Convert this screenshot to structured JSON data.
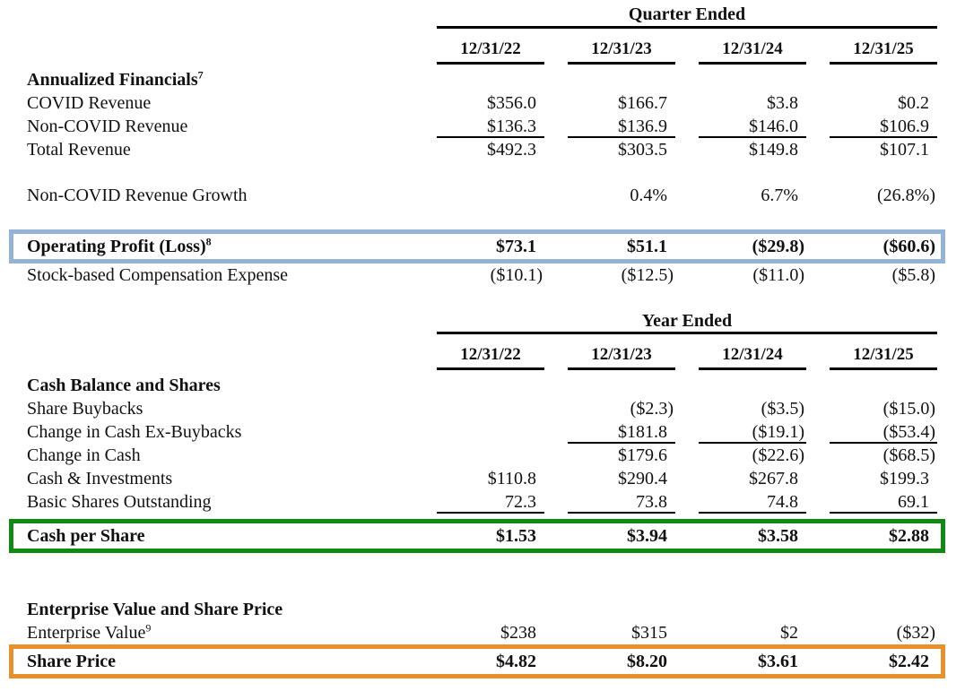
{
  "page": {
    "background": "#ffffff",
    "text_color": "#111111"
  },
  "box_colors": {
    "blue": "#95B3D7",
    "green": "#108A12",
    "orange": "#E8902C"
  },
  "tables": [
    {
      "id": "quarter-ended",
      "header": "Quarter Ended",
      "columns": [
        "12/31/22",
        "12/31/23",
        "12/31/24",
        "12/31/25"
      ],
      "rows": [
        {
          "label": "Annualized Financials",
          "sup": "7",
          "bold": true,
          "values": [
            "",
            "",
            "",
            ""
          ]
        },
        {
          "label": "COVID Revenue",
          "values": [
            "$356.0",
            "$166.7",
            "$3.8",
            "$0.2"
          ]
        },
        {
          "label": "Non-COVID Revenue",
          "values": [
            "$136.3",
            "$136.9",
            "$146.0",
            "$106.9"
          ],
          "underline": [
            1,
            2,
            3,
            4
          ]
        },
        {
          "label": "Total Revenue",
          "values": [
            "$492.3",
            "$303.5",
            "$149.8",
            "$107.1"
          ]
        },
        {
          "spacer": true
        },
        {
          "label": "Non-COVID Revenue Growth",
          "values": [
            "",
            "0.4%",
            "6.7%",
            "(26.8%)"
          ]
        },
        {
          "spacer": true
        },
        {
          "label": "Operating Profit (Loss)",
          "sup": "8",
          "bold": true,
          "box": "blue",
          "values": [
            "$73.1",
            "$51.1",
            "($29.8)",
            "($60.6)"
          ]
        },
        {
          "label": "Stock-based Compensation Expense",
          "values": [
            "($10.1)",
            "($12.5)",
            "($11.0)",
            "($5.8)"
          ]
        }
      ]
    },
    {
      "id": "year-ended",
      "header": "Year Ended",
      "columns": [
        "12/31/22",
        "12/31/23",
        "12/31/24",
        "12/31/25"
      ],
      "rows": [
        {
          "label": "Cash Balance and Shares",
          "bold": true,
          "values": [
            "",
            "",
            "",
            ""
          ]
        },
        {
          "label": "Share Buybacks",
          "values": [
            "",
            "($2.3)",
            "($3.5)",
            "($15.0)"
          ]
        },
        {
          "label": "Change in Cash Ex-Buybacks",
          "values": [
            "",
            "$181.8",
            "($19.1)",
            "($53.4)"
          ],
          "underline": [
            2,
            3,
            4
          ]
        },
        {
          "label": "Change in Cash",
          "values": [
            "",
            "$179.6",
            "($22.6)",
            "($68.5)"
          ]
        },
        {
          "label": "Cash & Investments",
          "values": [
            "$110.8",
            "$290.4",
            "$267.8",
            "$199.3"
          ]
        },
        {
          "label": "Basic Shares Outstanding",
          "values": [
            "72.3",
            "73.8",
            "74.8",
            "69.1"
          ],
          "underline": [
            1,
            2,
            3,
            4
          ]
        },
        {
          "label": "Cash per Share",
          "bold": true,
          "box": "green",
          "values": [
            "$1.53",
            "$3.94",
            "$3.58",
            "$2.88"
          ]
        }
      ]
    },
    {
      "id": "enterprise-value",
      "header": "",
      "columns": null,
      "rows": [
        {
          "label": "Enterprise Value and Share Price",
          "bold": true,
          "values": [
            "",
            "",
            "",
            ""
          ]
        },
        {
          "label": "Enterprise Value",
          "sup": "9",
          "values": [
            "$238",
            "$315",
            "$2",
            "($32)"
          ]
        },
        {
          "label": "Share Price",
          "bold": true,
          "box": "orange",
          "values": [
            "$4.82",
            "$8.20",
            "$3.61",
            "$2.42"
          ]
        }
      ]
    }
  ]
}
